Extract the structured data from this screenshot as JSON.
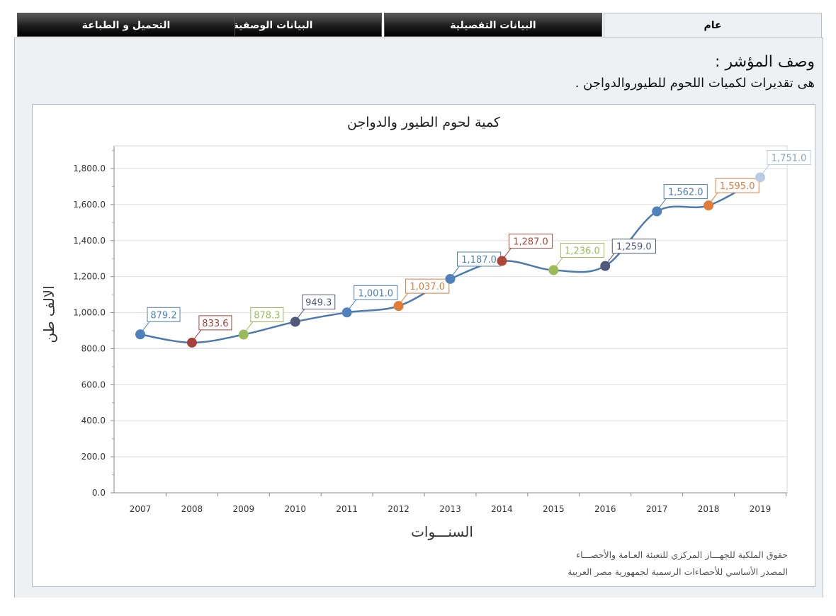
{
  "tabs": [
    {
      "label": "عام",
      "active": true
    },
    {
      "label": "البيانات التفصيلية",
      "active": false
    },
    {
      "label": "البيانات الوصفية",
      "active": false
    },
    {
      "label": "التحميل و الطباعة",
      "active": false
    }
  ],
  "description": {
    "title": "وصف المؤشر :",
    "text": "هى تقديرات لكميات اللحوم للطيوروالدواجن ."
  },
  "credits": {
    "line1": "حقوق الملكية للجهـــاز المركزي للتعبئة العـامة والأحصـــاء",
    "line2": "المصدر الأساسي للأحصاءات الرسمية لجمهورية مصر العربية"
  },
  "chart_data": {
    "type": "line",
    "title": "كمية لحوم الطيور والدواجن",
    "xlabel": "السنـــوات",
    "ylabel": "الالف طن",
    "categories": [
      "2007",
      "2008",
      "2009",
      "2010",
      "2011",
      "2012",
      "2013",
      "2014",
      "2015",
      "2016",
      "2017",
      "2018",
      "2019"
    ],
    "values": [
      879.2,
      833.6,
      878.3,
      949.3,
      1001.0,
      1037.0,
      1187.0,
      1287.0,
      1236.0,
      1259.0,
      1562.0,
      1595.0,
      1751.0
    ],
    "data_labels": [
      "879.2",
      "833.6",
      "878.3",
      "949.3",
      "1,001.0",
      "1,037.0",
      "1,187.0",
      "1,287.0",
      "1,236.0",
      "1,259.0",
      "1,562.0",
      "1,595.0",
      "1,751.0"
    ],
    "yticks": [
      "0.0",
      "200.0",
      "400.0",
      "600.0",
      "800.0",
      "1,000.0",
      "1,200.0",
      "1,400.0",
      "1,600.0",
      "1,800.0"
    ],
    "ylim": [
      0,
      1900
    ],
    "grid": true,
    "smooth": true,
    "line_color": "#4a7ab0",
    "point_colors": [
      "#4f81bd",
      "#a8403c",
      "#9bbb59",
      "#50597a",
      "#4f81bd",
      "#e07b39",
      "#4f81bd",
      "#b0463a",
      "#9bbb59",
      "#50597a",
      "#4f81bd",
      "#e07b39",
      "#b8cce4"
    ]
  }
}
